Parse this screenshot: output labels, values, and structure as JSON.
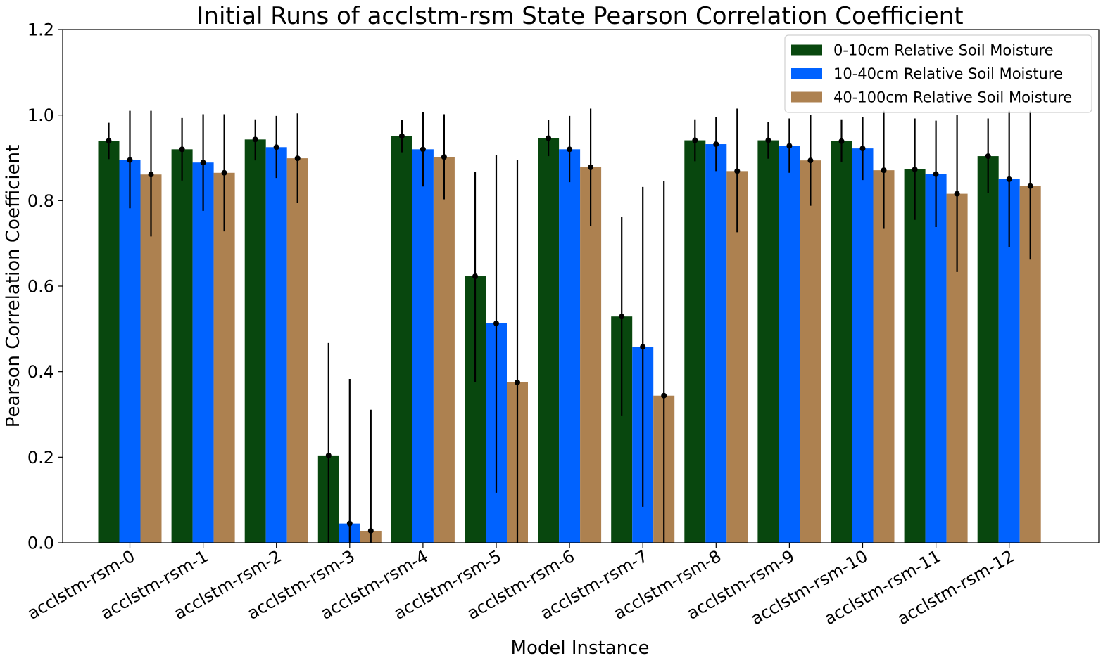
{
  "chart_data": {
    "type": "bar",
    "title": "Initial Runs of acclstm-rsm State Pearson Correlation Coefficient",
    "xlabel": "Model Instance",
    "ylabel": "Pearson Correlation Coefficient",
    "ylim": [
      0,
      1.2
    ],
    "yticks": [
      "0.0",
      "0.2",
      "0.4",
      "0.6",
      "0.8",
      "1.0",
      "1.2"
    ],
    "legend_position": "top-right",
    "grid": false,
    "categories": [
      "acclstm-rsm-0",
      "acclstm-rsm-1",
      "acclstm-rsm-2",
      "acclstm-rsm-3",
      "acclstm-rsm-4",
      "acclstm-rsm-5",
      "acclstm-rsm-6",
      "acclstm-rsm-7",
      "acclstm-rsm-8",
      "acclstm-rsm-9",
      "acclstm-rsm-10",
      "acclstm-rsm-11",
      "acclstm-rsm-12"
    ],
    "series": [
      {
        "name": "0-10cm Relative Soil Moisture",
        "color": "#08470e",
        "values": [
          0.94,
          0.92,
          0.943,
          0.204,
          0.951,
          0.623,
          0.946,
          0.529,
          0.941,
          0.941,
          0.939,
          0.873,
          0.904
        ],
        "err_low": [
          0.897,
          0.847,
          0.894,
          0.0,
          0.913,
          0.376,
          0.904,
          0.296,
          0.892,
          0.898,
          0.891,
          0.755,
          0.817
        ],
        "err_high": [
          0.982,
          0.993,
          0.99,
          0.467,
          0.988,
          0.868,
          0.988,
          0.762,
          0.99,
          0.983,
          0.99,
          0.992,
          0.992
        ]
      },
      {
        "name": "10-40cm Relative Soil Moisture",
        "color": "#0062ff",
        "values": [
          0.895,
          0.889,
          0.925,
          0.045,
          0.92,
          0.513,
          0.92,
          0.458,
          0.932,
          0.928,
          0.922,
          0.862,
          0.85
        ],
        "err_low": [
          0.782,
          0.776,
          0.853,
          0.0,
          0.833,
          0.117,
          0.843,
          0.084,
          0.869,
          0.865,
          0.848,
          0.738,
          0.691
        ],
        "err_high": [
          1.01,
          1.002,
          0.998,
          0.383,
          1.007,
          0.907,
          0.998,
          0.832,
          0.995,
          0.992,
          0.996,
          0.987,
          1.01
        ]
      },
      {
        "name": "40-100cm Relative Soil Moisture",
        "color": "#ad8150",
        "values": [
          0.861,
          0.865,
          0.899,
          0.028,
          0.902,
          0.375,
          0.878,
          0.344,
          0.869,
          0.894,
          0.871,
          0.816,
          0.834
        ],
        "err_low": [
          0.716,
          0.728,
          0.794,
          0.0,
          0.803,
          0.0,
          0.741,
          0.0,
          0.726,
          0.788,
          0.734,
          0.633,
          0.662
        ],
        "err_high": [
          1.01,
          1.002,
          1.004,
          0.311,
          1.002,
          0.895,
          1.015,
          0.846,
          1.015,
          1.0,
          1.01,
          1.0,
          1.01
        ]
      }
    ]
  }
}
